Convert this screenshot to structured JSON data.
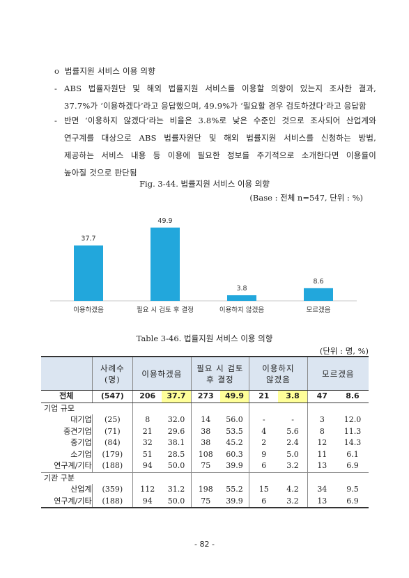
{
  "section": {
    "bullet": "o",
    "title": "법률지원 서비스 이용 의향",
    "dash": "-",
    "p1_line1": "ABS 법률자원단 및 해외 법률지원 서비스를 이용할 의향이 있는지 조사한 결과,",
    "p1_line2": "37.7%가 ‘이용하겠다’라고 응답했으며, 49.9%가 ‘필요할 경우 검토하겠다’라고 응답함",
    "p2_line1": "반면 ‘이용하지 않겠다’라는 비율은 3.8%로 낮은 수준인 것으로 조사되어 산업계와",
    "p2_line2": "연구계를 대상으로 ABS 법률자원단 및 해외 법률지원 서비스를 신청하는 방법,",
    "p2_line3": "제공하는 서비스 내용 등 이용에 필요한 정보를 주기적으로 소개한다면 이용률이",
    "p2_line4": "높아질 것으로 판단됨"
  },
  "figure": {
    "caption": "Fig. 3-44. 법률지원 서비스 이용 의향",
    "base": "(Base : 전체 n=547, 단위 : %)"
  },
  "chart_data": {
    "type": "bar",
    "categories": [
      "이용하겠음",
      "필요 시 검토 후 결정",
      "이용하지 않겠음",
      "모르겠음"
    ],
    "values": [
      37.7,
      49.9,
      3.8,
      8.6
    ],
    "value_labels": [
      "37.7",
      "49.9",
      "3.8",
      "8.6"
    ],
    "bar_color": "#22a7dc",
    "ylim": [
      0,
      55
    ],
    "grid": false
  },
  "table": {
    "caption": "Table 3-46. 법률지원 서비스 이용 의향",
    "unit": "(단위 : 명, %)",
    "headers": {
      "respondents_l1": "사례수",
      "respondents_l2": "(명)",
      "use": "이용하겠음",
      "review_l1": "필요 시 검토",
      "review_l2": "후 결정",
      "no_use_l1": "이용하지",
      "no_use_l2": "않겠음",
      "unknown": "모르겠음"
    },
    "total": {
      "label": "전체",
      "n": "(547)",
      "c1": "206",
      "p1": "37.7",
      "c2": "273",
      "p2": "49.9",
      "c3": "21",
      "p3": "3.8",
      "c4": "47",
      "p4": "8.6"
    },
    "group1": {
      "title": "기업 규모",
      "rows": [
        {
          "label": "대기업",
          "n": "(25)",
          "c1": "8",
          "p1": "32.0",
          "c2": "14",
          "p2": "56.0",
          "c3": "-",
          "p3": "-",
          "c4": "3",
          "p4": "12.0"
        },
        {
          "label": "중견기업",
          "n": "(71)",
          "c1": "21",
          "p1": "29.6",
          "c2": "38",
          "p2": "53.5",
          "c3": "4",
          "p3": "5.6",
          "c4": "8",
          "p4": "11.3"
        },
        {
          "label": "중기업",
          "n": "(84)",
          "c1": "32",
          "p1": "38.1",
          "c2": "38",
          "p2": "45.2",
          "c3": "2",
          "p3": "2.4",
          "c4": "12",
          "p4": "14.3"
        },
        {
          "label": "소기업",
          "n": "(179)",
          "c1": "51",
          "p1": "28.5",
          "c2": "108",
          "p2": "60.3",
          "c3": "9",
          "p3": "5.0",
          "c4": "11",
          "p4": "6.1"
        },
        {
          "label": "연구계/기타",
          "n": "(188)",
          "c1": "94",
          "p1": "50.0",
          "c2": "75",
          "p2": "39.9",
          "c3": "6",
          "p3": "3.2",
          "c4": "13",
          "p4": "6.9"
        }
      ]
    },
    "group2": {
      "title": "기관 구분",
      "rows": [
        {
          "label": "산업계",
          "n": "(359)",
          "c1": "112",
          "p1": "31.2",
          "c2": "198",
          "p2": "55.2",
          "c3": "15",
          "p3": "4.2",
          "c4": "34",
          "p4": "9.5"
        },
        {
          "label": "연구계/기타",
          "n": "(188)",
          "c1": "94",
          "p1": "50.0",
          "c2": "75",
          "p2": "39.9",
          "c3": "6",
          "p3": "3.2",
          "c4": "13",
          "p4": "6.9"
        }
      ]
    }
  },
  "page_number": "- 82 -"
}
